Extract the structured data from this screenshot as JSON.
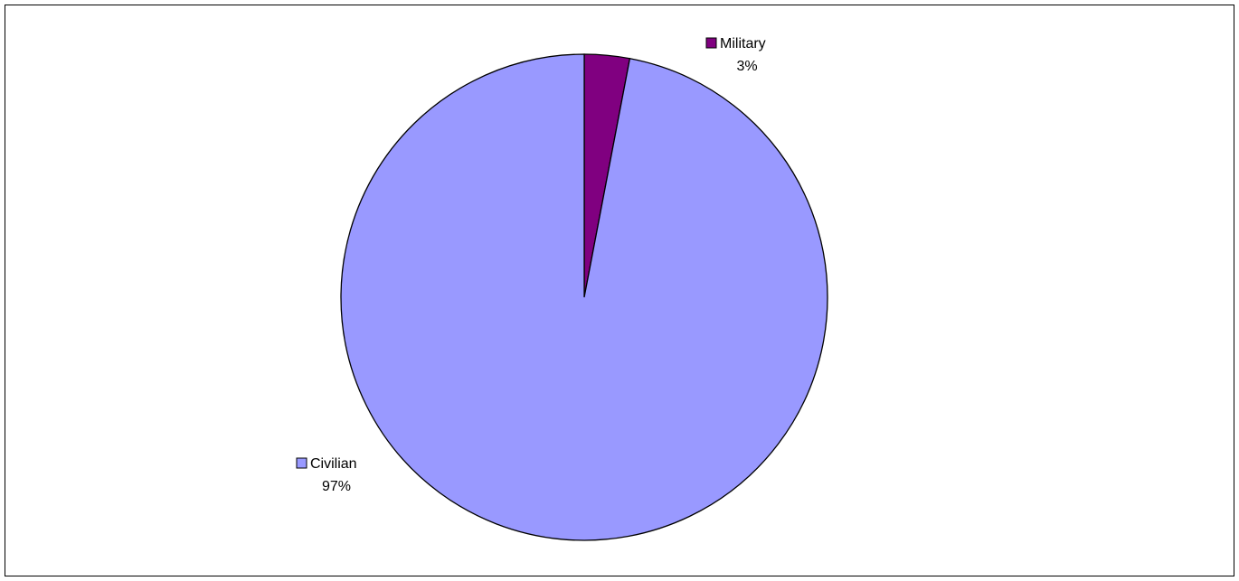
{
  "chart_data": {
    "type": "pie",
    "slices": [
      {
        "label": "Military",
        "value": 3,
        "percent_label": "3%",
        "color": "#800080"
      },
      {
        "label": "Civilian",
        "value": 97,
        "percent_label": "97%",
        "color": "#9999FF"
      }
    ],
    "start_angle_deg": 0,
    "direction": "clockwise",
    "outline_color": "#000000"
  }
}
